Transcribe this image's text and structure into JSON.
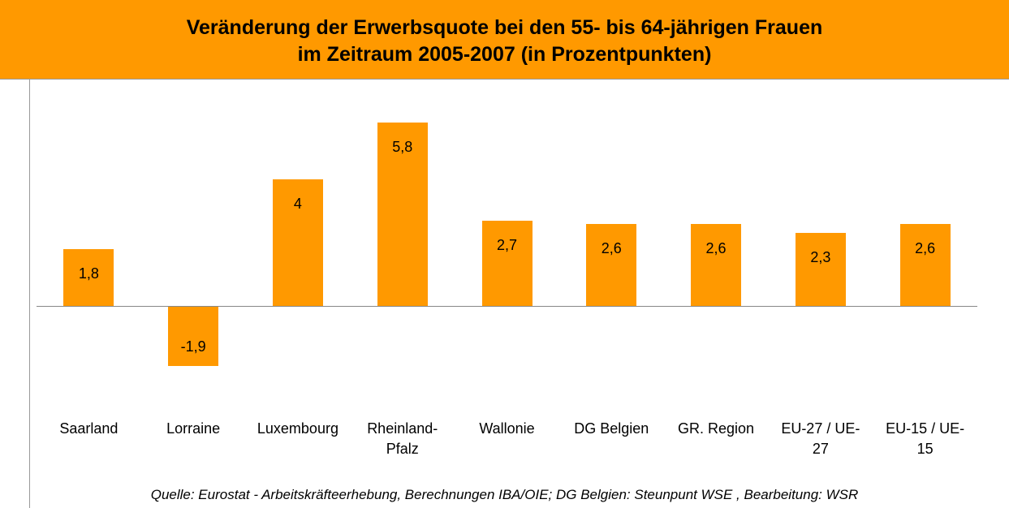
{
  "chart_data": {
    "type": "bar",
    "title": "Veränderung der Erwerbsquote bei den 55- bis 64-jährigen Frauen\nim Zeitraum 2005-2007 (in Prozentpunkten)",
    "categories": [
      "Saarland",
      "Lorraine",
      "Luxembourg",
      "Rheinland-Pfalz",
      "Wallonie",
      "DG Belgien",
      "GR. Region",
      "EU-27 / UE-27",
      "EU-15 / UE-15"
    ],
    "values": [
      1.8,
      -1.9,
      4,
      5.8,
      2.7,
      2.6,
      2.6,
      2.3,
      2.6
    ],
    "value_labels": [
      "1,8",
      "-1,9",
      "4",
      "5,8",
      "2,7",
      "2,6",
      "2,6",
      "2,3",
      "2,6"
    ],
    "color": "#ff9900",
    "ylim": [
      -3,
      7
    ],
    "source": "Quelle: Eurostat - Arbeitskräfteerhebung, Berechnungen IBA/OIE; DG Belgien: Steunpunt WSE , Bearbeitung: WSR"
  }
}
